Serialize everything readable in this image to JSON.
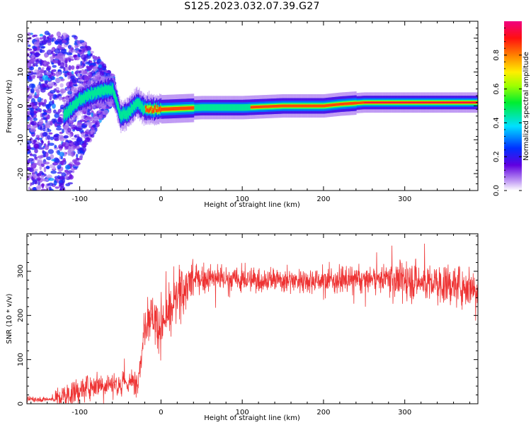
{
  "title": "S125.2023.032.07.39.G27",
  "chart_data": [
    {
      "type": "heatmap",
      "xlabel": "Height of straight line (km)",
      "ylabel": "Frequency (Hz)",
      "xlim": [
        -165,
        390
      ],
      "ylim": [
        -25,
        25
      ],
      "xticks": [
        -100,
        0,
        100,
        200,
        300
      ],
      "yticks": [
        -20,
        -10,
        0,
        10,
        20
      ],
      "colorbar": {
        "label": "Normalized spectral amplitude",
        "range": [
          0.0,
          1.0
        ],
        "ticks": [
          "0.0",
          "0.2",
          "0.4",
          "0.6",
          "0.8"
        ],
        "colormap": "rainbow (white → violet → blue → cyan → green → yellow → orange → red → magenta)"
      },
      "ridge": {
        "x": [
          -120,
          -100,
          -80,
          -60,
          -50,
          -40,
          -30,
          -20,
          0,
          50,
          100,
          150,
          200,
          220,
          250,
          300,
          390
        ],
        "y": [
          -3,
          2,
          4,
          5,
          -3,
          -2,
          1,
          -1,
          -1,
          -0.5,
          -0.5,
          0,
          0,
          0.5,
          1,
          1,
          1
        ]
      }
    },
    {
      "type": "line",
      "xlabel": "Height of straight line (km)",
      "ylabel": "SNR (10 * v/v)",
      "xlim": [
        -165,
        390
      ],
      "ylim": [
        0,
        385
      ],
      "xticks": [
        -100,
        0,
        100,
        200,
        300
      ],
      "yticks": [
        0,
        100,
        200,
        300
      ],
      "color": "#ee3333",
      "trend": {
        "x": [
          -165,
          -130,
          -100,
          -80,
          -50,
          -30,
          -25,
          -20,
          -15,
          -10,
          -5,
          0,
          10,
          20,
          30,
          40,
          60,
          100,
          150,
          200,
          250,
          280,
          300,
          350,
          390
        ],
        "y": [
          10,
          10,
          30,
          45,
          45,
          50,
          90,
          180,
          200,
          200,
          180,
          175,
          200,
          240,
          265,
          280,
          285,
          280,
          280,
          280,
          280,
          285,
          280,
          270,
          265
        ]
      }
    }
  ]
}
